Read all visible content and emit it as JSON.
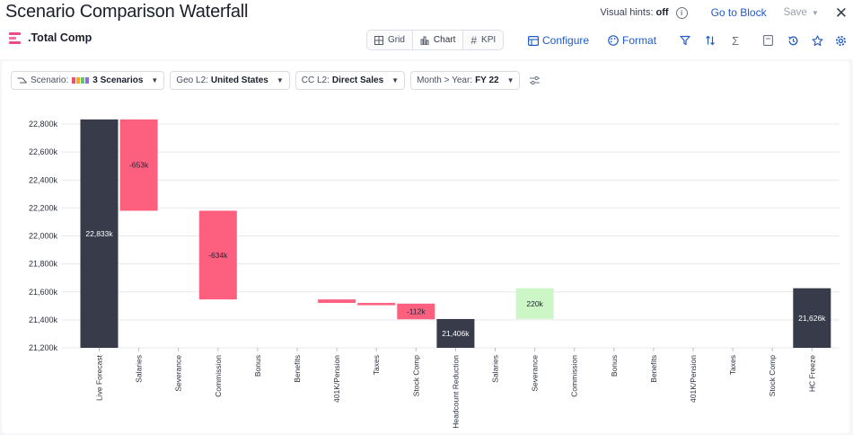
{
  "header": {
    "title": "Scenario Comparison Waterfall",
    "visual_hints_label": "Visual hints:",
    "visual_hints_value": "off",
    "goto_label": "Go to Block",
    "save_label": "Save"
  },
  "subheader": {
    "title": ".Total Comp"
  },
  "view_toggle": {
    "grid": "Grid",
    "chart": "Chart",
    "kpi": "KPI"
  },
  "toolbar": {
    "configure": "Configure",
    "format": "Format"
  },
  "filters": [
    {
      "label": "Scenario:",
      "value": "3 Scenarios"
    },
    {
      "label": "Geo L2:",
      "value": "United States"
    },
    {
      "label": "CC L2:",
      "value": "Direct Sales"
    },
    {
      "label": "Month > Year:",
      "value": "FY 22"
    }
  ],
  "colors": {
    "total": "#373b4a",
    "decrease": "#fd5f7f",
    "increase": "#cdf6c6",
    "grid": "#e7e9ed",
    "accent": "#1f5ac8"
  },
  "chart_data": {
    "type": "waterfall",
    "title": "Scenario Comparison Waterfall",
    "y_ticks": [
      "21,200k",
      "21,400k",
      "21,600k",
      "21,800k",
      "22,000k",
      "22,200k",
      "22,400k",
      "22,600k",
      "22,800k"
    ],
    "ylim": [
      21200,
      22900
    ],
    "categories": [
      "Live Forecast",
      "Salaries",
      "Severance",
      "Commission",
      "Bonus",
      "Benefits",
      "401K/Pension",
      "Taxes",
      "Stock Comp",
      "Headcount Reduction",
      "Salaries",
      "Severance",
      "Commission",
      "Bonus",
      "Benefits",
      "401K/Pension",
      "Taxes",
      "Stock Comp",
      "HC Freeze"
    ],
    "bars": [
      {
        "kind": "total",
        "value": 22833,
        "label": "22,833k"
      },
      {
        "kind": "delta",
        "value": -653,
        "label": "-653k"
      },
      {
        "kind": "delta",
        "value": 0,
        "label": ""
      },
      {
        "kind": "delta",
        "value": -634,
        "label": "-634k"
      },
      {
        "kind": "delta",
        "value": 0,
        "label": ""
      },
      {
        "kind": "delta",
        "value": 0,
        "label": ""
      },
      {
        "kind": "delta",
        "value": -25,
        "label": ""
      },
      {
        "kind": "delta",
        "value": -5,
        "label": ""
      },
      {
        "kind": "delta",
        "value": -112,
        "label": "-112k"
      },
      {
        "kind": "total",
        "value": 21406,
        "label": "21,406k"
      },
      {
        "kind": "delta",
        "value": 0,
        "label": ""
      },
      {
        "kind": "delta",
        "value": 220,
        "label": "220k"
      },
      {
        "kind": "delta",
        "value": 0,
        "label": ""
      },
      {
        "kind": "delta",
        "value": 0,
        "label": ""
      },
      {
        "kind": "delta",
        "value": 0,
        "label": ""
      },
      {
        "kind": "delta",
        "value": 0,
        "label": ""
      },
      {
        "kind": "delta",
        "value": 0,
        "label": ""
      },
      {
        "kind": "delta",
        "value": 0,
        "label": ""
      },
      {
        "kind": "total",
        "value": 21626,
        "label": "21,626k"
      }
    ]
  }
}
